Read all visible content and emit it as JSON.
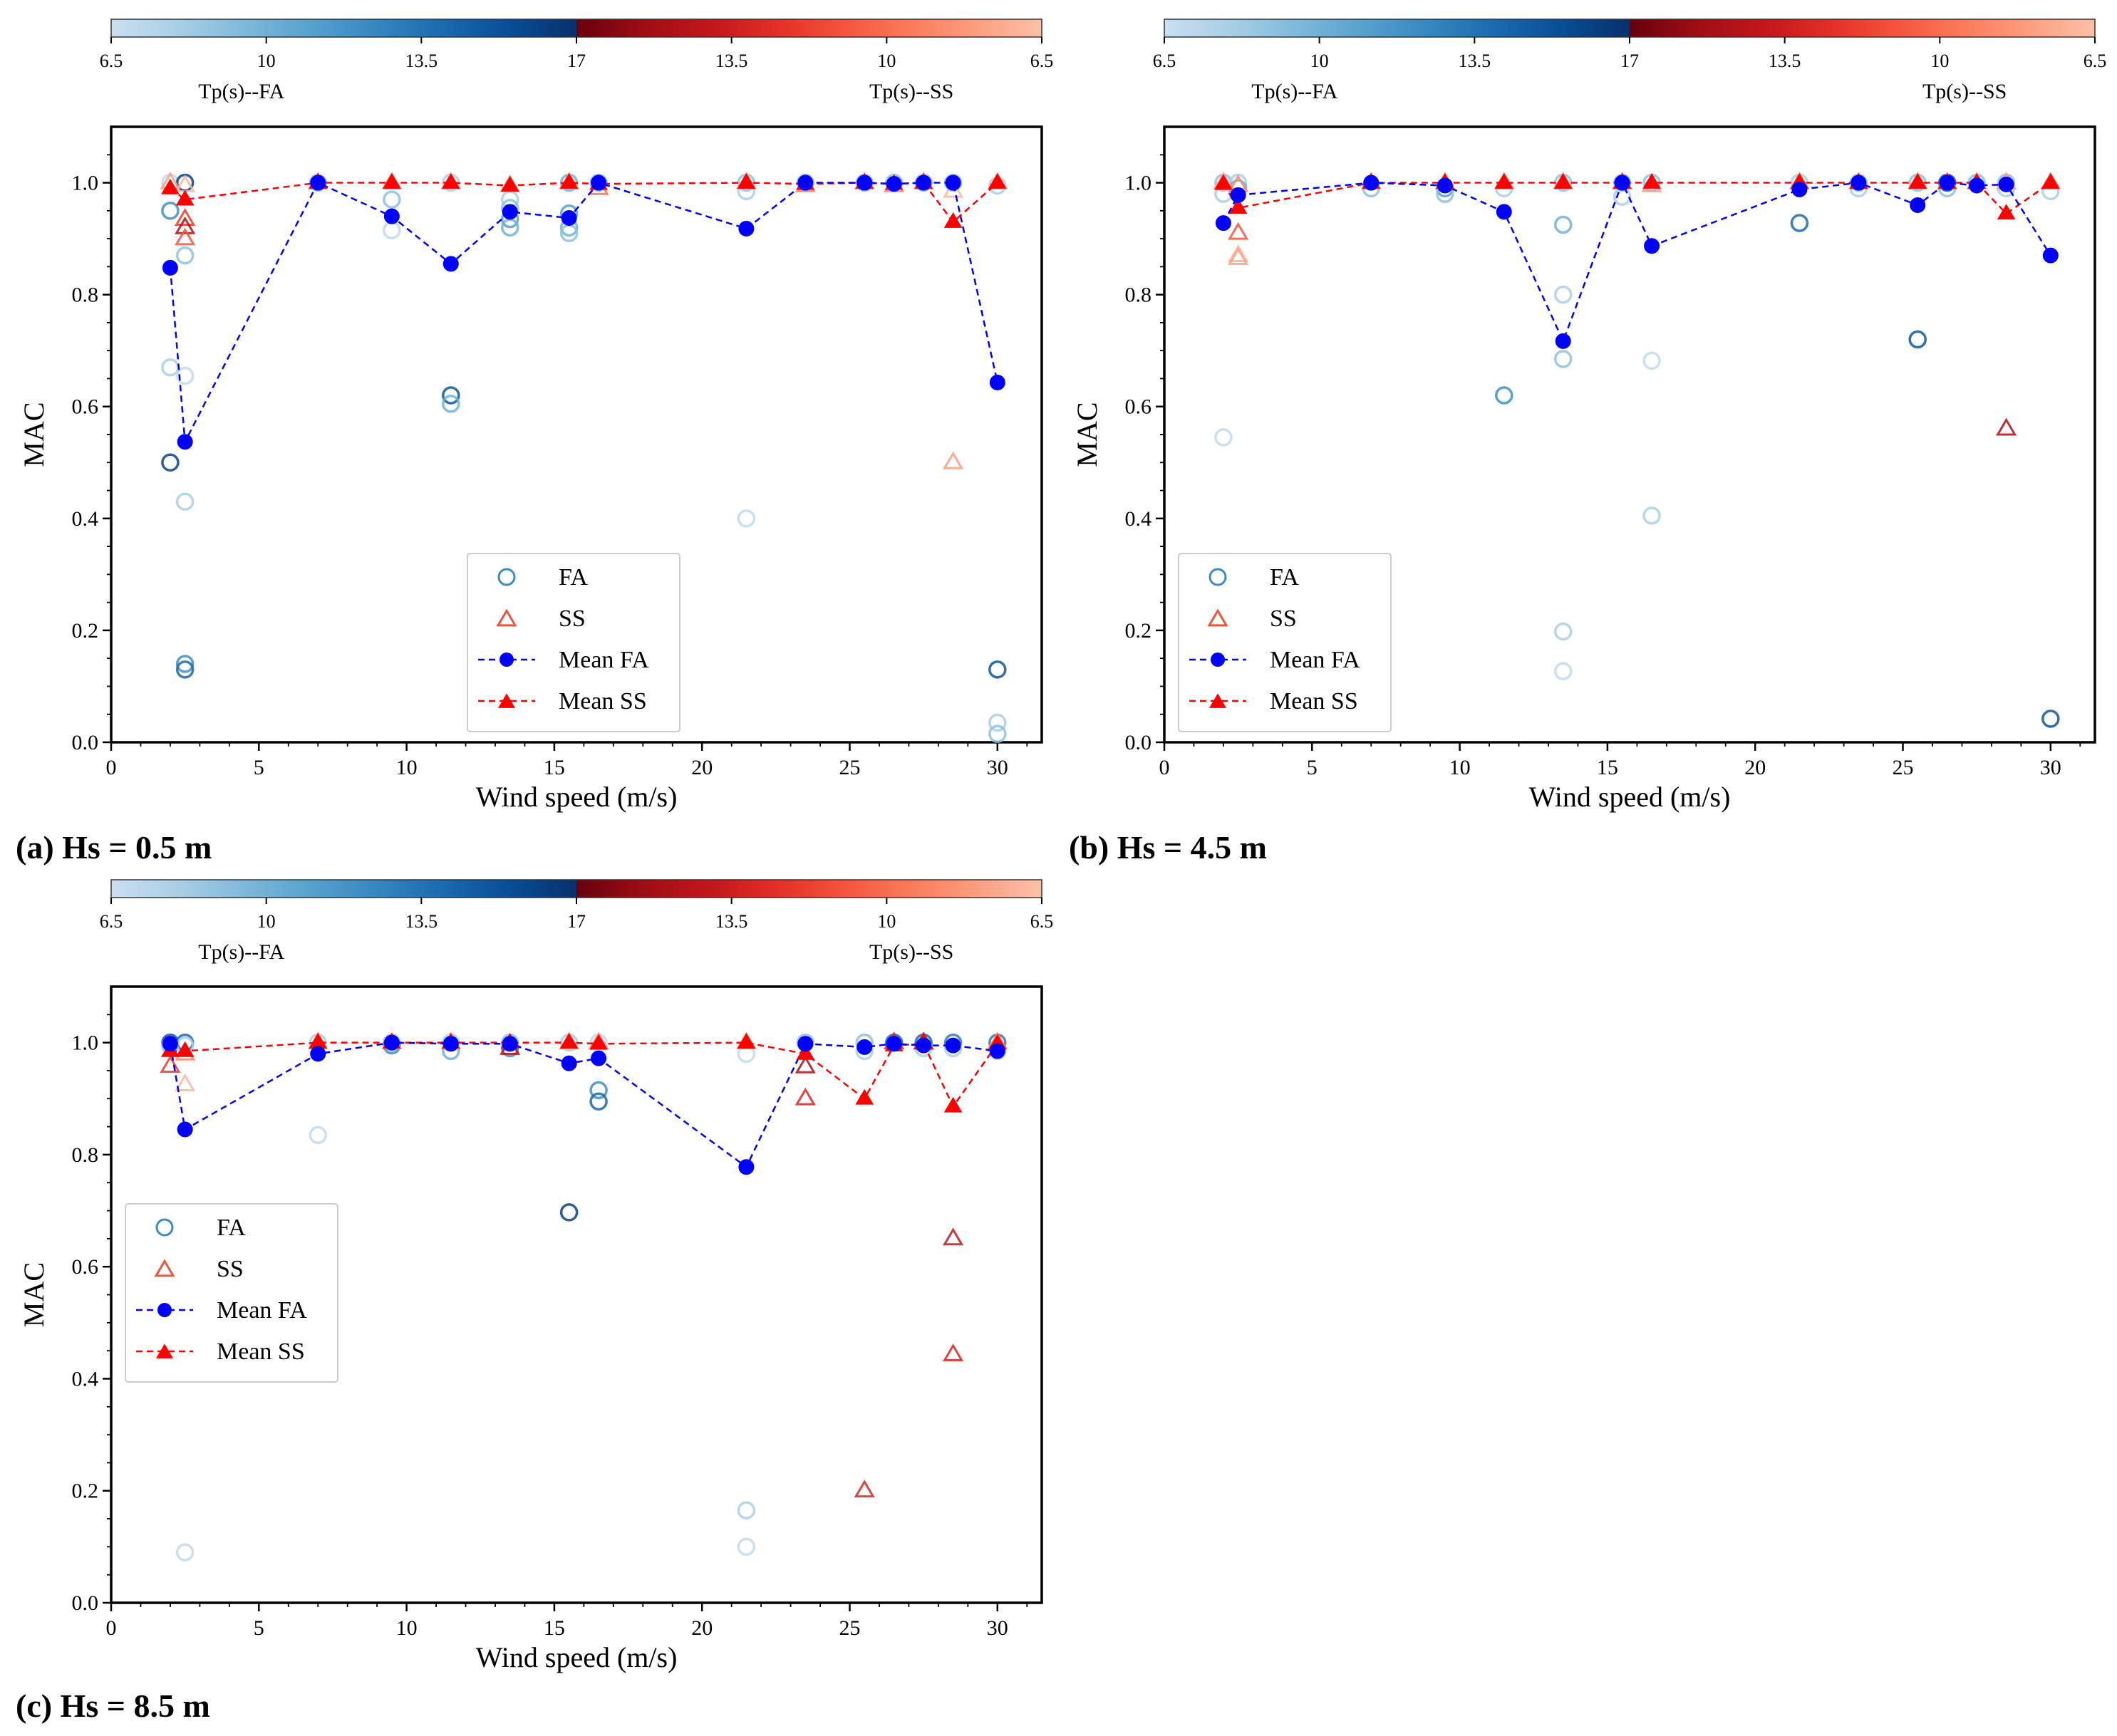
{
  "chart_data": [
    {
      "type": "scatter",
      "panel_label": "(a) Hs = 0.5 m",
      "xlabel": "Wind speed (m/s)",
      "ylabel": "MAC",
      "xlim": [
        0,
        31.5
      ],
      "ylim": [
        0,
        1.1
      ],
      "xticks": [
        0,
        5,
        10,
        15,
        20,
        25,
        30
      ],
      "yticks": [
        0.0,
        0.2,
        0.4,
        0.6,
        0.8,
        1.0
      ],
      "ytick_labels": [
        "0.0",
        "0.2",
        "0.4",
        "0.6",
        "0.8",
        "1.0"
      ],
      "legend": [
        "FA",
        "SS",
        "Mean FA",
        "Mean SS"
      ],
      "legend_position": "lower-center",
      "colorbar": {
        "tick_labels": [
          "6.5",
          "10",
          "13.5",
          "17",
          "13.5",
          "10",
          "6.5"
        ],
        "label_fa": "Tp(s)--FA",
        "label_ss": "Tp(s)--SS"
      },
      "fa_points": [
        {
          "x": 2,
          "y": 1.0,
          "tp": 7
        },
        {
          "x": 2,
          "y": 0.95,
          "tp": 12
        },
        {
          "x": 2,
          "y": 0.67,
          "tp": 8
        },
        {
          "x": 2,
          "y": 0.5,
          "tp": 16
        },
        {
          "x": 2.5,
          "y": 1.0,
          "tp": 16
        },
        {
          "x": 2.5,
          "y": 0.87,
          "tp": 9
        },
        {
          "x": 2.5,
          "y": 0.655,
          "tp": 7
        },
        {
          "x": 2.5,
          "y": 0.43,
          "tp": 8
        },
        {
          "x": 2.5,
          "y": 0.14,
          "tp": 12
        },
        {
          "x": 2.5,
          "y": 0.13,
          "tp": 14
        },
        {
          "x": 7,
          "y": 1.0,
          "tp": 9
        },
        {
          "x": 9.5,
          "y": 0.97,
          "tp": 9
        },
        {
          "x": 9.5,
          "y": 0.915,
          "tp": 7
        },
        {
          "x": 11.5,
          "y": 1.0,
          "tp": 8
        },
        {
          "x": 11.5,
          "y": 0.62,
          "tp": 15
        },
        {
          "x": 11.5,
          "y": 0.605,
          "tp": 10
        },
        {
          "x": 13.5,
          "y": 0.97,
          "tp": 8
        },
        {
          "x": 13.5,
          "y": 0.955,
          "tp": 9
        },
        {
          "x": 13.5,
          "y": 0.935,
          "tp": 11
        },
        {
          "x": 13.5,
          "y": 0.92,
          "tp": 10
        },
        {
          "x": 15.5,
          "y": 1.0,
          "tp": 10
        },
        {
          "x": 15.5,
          "y": 0.945,
          "tp": 11
        },
        {
          "x": 15.5,
          "y": 0.92,
          "tp": 10
        },
        {
          "x": 15.5,
          "y": 0.91,
          "tp": 9
        },
        {
          "x": 16.5,
          "y": 1.0,
          "tp": 9
        },
        {
          "x": 21.5,
          "y": 1.0,
          "tp": 9
        },
        {
          "x": 21.5,
          "y": 0.985,
          "tp": 8
        },
        {
          "x": 21.5,
          "y": 0.4,
          "tp": 7
        },
        {
          "x": 23.5,
          "y": 1.0,
          "tp": 9
        },
        {
          "x": 25.5,
          "y": 1.0,
          "tp": 9
        },
        {
          "x": 26.5,
          "y": 1.0,
          "tp": 9
        },
        {
          "x": 27.5,
          "y": 1.0,
          "tp": 9
        },
        {
          "x": 28.5,
          "y": 1.0,
          "tp": 9
        },
        {
          "x": 30,
          "y": 0.995,
          "tp": 8
        },
        {
          "x": 30,
          "y": 0.13,
          "tp": 15
        },
        {
          "x": 30,
          "y": 0.035,
          "tp": 8
        },
        {
          "x": 30,
          "y": 0.015,
          "tp": 9
        }
      ],
      "ss_points": [
        {
          "x": 2,
          "y": 1.0,
          "tp": 8
        },
        {
          "x": 2.5,
          "y": 0.995,
          "tp": 7
        },
        {
          "x": 2.5,
          "y": 0.935,
          "tp": 12
        },
        {
          "x": 2.5,
          "y": 0.92,
          "tp": 15
        },
        {
          "x": 2.5,
          "y": 0.9,
          "tp": 11
        },
        {
          "x": 7,
          "y": 1.0,
          "tp": 8
        },
        {
          "x": 9.5,
          "y": 1.0,
          "tp": 8
        },
        {
          "x": 11.5,
          "y": 1.0,
          "tp": 7
        },
        {
          "x": 13.5,
          "y": 0.995,
          "tp": 8
        },
        {
          "x": 15.5,
          "y": 1.0,
          "tp": 8
        },
        {
          "x": 16.5,
          "y": 0.99,
          "tp": 10
        },
        {
          "x": 21.5,
          "y": 1.0,
          "tp": 8
        },
        {
          "x": 23.5,
          "y": 0.995,
          "tp": 9
        },
        {
          "x": 25.5,
          "y": 1.0,
          "tp": 8
        },
        {
          "x": 26.5,
          "y": 0.995,
          "tp": 9
        },
        {
          "x": 27.5,
          "y": 1.0,
          "tp": 8
        },
        {
          "x": 28.5,
          "y": 0.985,
          "tp": 7
        },
        {
          "x": 28.5,
          "y": 0.5,
          "tp": 8
        },
        {
          "x": 30,
          "y": 1.0,
          "tp": 7
        }
      ],
      "mean_fa": {
        "x": [
          2,
          2.5,
          7,
          9.5,
          11.5,
          13.5,
          15.5,
          16.5,
          21.5,
          23.5,
          25.5,
          26.5,
          27.5,
          28.5,
          30
        ],
        "y": [
          0.848,
          0.537,
          1.0,
          0.94,
          0.855,
          0.948,
          0.937,
          1.0,
          0.918,
          1.0,
          1.0,
          0.998,
          1.0,
          1.0,
          0.643
        ]
      },
      "mean_ss": {
        "x": [
          2,
          2.5,
          7,
          9.5,
          11.5,
          13.5,
          15.5,
          16.5,
          21.5,
          23.5,
          25.5,
          26.5,
          27.5,
          28.5,
          30
        ],
        "y": [
          0.99,
          0.97,
          1.0,
          1.0,
          1.0,
          0.995,
          1.0,
          0.998,
          1.0,
          0.998,
          1.0,
          0.998,
          1.0,
          0.93,
          1.0
        ]
      }
    },
    {
      "type": "scatter",
      "panel_label": "(b) Hs = 4.5 m",
      "xlabel": "Wind speed (m/s)",
      "ylabel": "MAC",
      "xlim": [
        0,
        31.5
      ],
      "ylim": [
        0,
        1.1
      ],
      "xticks": [
        0,
        5,
        10,
        15,
        20,
        25,
        30
      ],
      "yticks": [
        0.0,
        0.2,
        0.4,
        0.6,
        0.8,
        1.0
      ],
      "ytick_labels": [
        "0.0",
        "0.2",
        "0.4",
        "0.6",
        "0.8",
        "1.0"
      ],
      "legend": [
        "FA",
        "SS",
        "Mean FA",
        "Mean SS"
      ],
      "legend_position": "lower-left",
      "colorbar": {
        "tick_labels": [
          "6.5",
          "10",
          "13.5",
          "17",
          "13.5",
          "10",
          "6.5"
        ],
        "label_fa": "Tp(s)--FA",
        "label_ss": "Tp(s)--SS"
      },
      "fa_points": [
        {
          "x": 2,
          "y": 1.0,
          "tp": 9
        },
        {
          "x": 2,
          "y": 0.98,
          "tp": 8
        },
        {
          "x": 2,
          "y": 0.545,
          "tp": 7
        },
        {
          "x": 2.5,
          "y": 1.0,
          "tp": 8
        },
        {
          "x": 2.5,
          "y": 0.99,
          "tp": 10
        },
        {
          "x": 7,
          "y": 0.99,
          "tp": 9
        },
        {
          "x": 9.5,
          "y": 0.99,
          "tp": 11
        },
        {
          "x": 9.5,
          "y": 0.98,
          "tp": 9
        },
        {
          "x": 11.5,
          "y": 0.99,
          "tp": 8
        },
        {
          "x": 11.5,
          "y": 0.62,
          "tp": 12
        },
        {
          "x": 13.5,
          "y": 1.0,
          "tp": 9
        },
        {
          "x": 13.5,
          "y": 0.925,
          "tp": 10
        },
        {
          "x": 13.5,
          "y": 0.8,
          "tp": 8
        },
        {
          "x": 13.5,
          "y": 0.685,
          "tp": 9
        },
        {
          "x": 13.5,
          "y": 0.198,
          "tp": 8
        },
        {
          "x": 13.5,
          "y": 0.127,
          "tp": 7
        },
        {
          "x": 15.5,
          "y": 1.0,
          "tp": 9
        },
        {
          "x": 15.5,
          "y": 0.975,
          "tp": 8
        },
        {
          "x": 16.5,
          "y": 1.0,
          "tp": 9
        },
        {
          "x": 16.5,
          "y": 0.682,
          "tp": 7
        },
        {
          "x": 16.5,
          "y": 0.405,
          "tp": 8
        },
        {
          "x": 21.5,
          "y": 1.0,
          "tp": 8
        },
        {
          "x": 21.5,
          "y": 0.928,
          "tp": 14
        },
        {
          "x": 23.5,
          "y": 1.0,
          "tp": 9
        },
        {
          "x": 23.5,
          "y": 0.99,
          "tp": 8
        },
        {
          "x": 25.5,
          "y": 1.0,
          "tp": 9
        },
        {
          "x": 25.5,
          "y": 0.72,
          "tp": 15
        },
        {
          "x": 26.5,
          "y": 1.0,
          "tp": 15
        },
        {
          "x": 26.5,
          "y": 0.99,
          "tp": 9
        },
        {
          "x": 27.5,
          "y": 1.0,
          "tp": 9
        },
        {
          "x": 28.5,
          "y": 1.0,
          "tp": 9
        },
        {
          "x": 28.5,
          "y": 0.99,
          "tp": 8
        },
        {
          "x": 30,
          "y": 0.985,
          "tp": 8
        },
        {
          "x": 30,
          "y": 0.042,
          "tp": 15
        }
      ],
      "ss_points": [
        {
          "x": 2,
          "y": 1.0,
          "tp": 8
        },
        {
          "x": 2.5,
          "y": 0.995,
          "tp": 9
        },
        {
          "x": 2.5,
          "y": 0.91,
          "tp": 11
        },
        {
          "x": 2.5,
          "y": 0.87,
          "tp": 7
        },
        {
          "x": 2.5,
          "y": 0.865,
          "tp": 8
        },
        {
          "x": 7,
          "y": 1.0,
          "tp": 8
        },
        {
          "x": 9.5,
          "y": 1.0,
          "tp": 8
        },
        {
          "x": 11.5,
          "y": 1.0,
          "tp": 8
        },
        {
          "x": 13.5,
          "y": 1.0,
          "tp": 8
        },
        {
          "x": 15.5,
          "y": 1.0,
          "tp": 9
        },
        {
          "x": 16.5,
          "y": 0.995,
          "tp": 8
        },
        {
          "x": 21.5,
          "y": 1.0,
          "tp": 8
        },
        {
          "x": 23.5,
          "y": 1.0,
          "tp": 8
        },
        {
          "x": 25.5,
          "y": 1.0,
          "tp": 8
        },
        {
          "x": 26.5,
          "y": 1.0,
          "tp": 9
        },
        {
          "x": 27.5,
          "y": 1.0,
          "tp": 8
        },
        {
          "x": 28.5,
          "y": 1.0,
          "tp": 8
        },
        {
          "x": 28.5,
          "y": 0.56,
          "tp": 15
        },
        {
          "x": 30,
          "y": 1.0,
          "tp": 8
        }
      ],
      "mean_fa": {
        "x": [
          2,
          2.5,
          7,
          9.5,
          11.5,
          13.5,
          15.5,
          16.5,
          21.5,
          23.5,
          25.5,
          26.5,
          27.5,
          28.5,
          30
        ],
        "y": [
          0.928,
          0.978,
          1.0,
          0.995,
          0.948,
          0.717,
          1.0,
          0.887,
          0.988,
          1.0,
          0.96,
          1.0,
          0.995,
          0.997,
          0.87
        ]
      },
      "mean_ss": {
        "x": [
          2,
          2.5,
          7,
          9.5,
          11.5,
          13.5,
          15.5,
          16.5,
          21.5,
          23.5,
          25.5,
          26.5,
          27.5,
          28.5,
          30
        ],
        "y": [
          0.998,
          0.955,
          1.0,
          1.0,
          1.0,
          1.0,
          1.0,
          1.0,
          1.0,
          1.0,
          1.0,
          1.0,
          1.0,
          0.945,
          1.0
        ]
      }
    },
    {
      "type": "scatter",
      "panel_label": "(c) Hs = 8.5 m",
      "xlabel": "Wind speed (m/s)",
      "ylabel": "MAC",
      "xlim": [
        0,
        31.5
      ],
      "ylim": [
        0,
        1.1
      ],
      "xticks": [
        0,
        5,
        10,
        15,
        20,
        25,
        30
      ],
      "yticks": [
        0.0,
        0.2,
        0.4,
        0.6,
        0.8,
        1.0
      ],
      "ytick_labels": [
        "0.0",
        "0.2",
        "0.4",
        "0.6",
        "0.8",
        "1.0"
      ],
      "legend": [
        "FA",
        "SS",
        "Mean FA",
        "Mean SS"
      ],
      "legend_position": "center-left",
      "colorbar": {
        "tick_labels": [
          "6.5",
          "10",
          "13.5",
          "17",
          "13.5",
          "10",
          "6.5"
        ],
        "label_fa": "Tp(s)--FA",
        "label_ss": "Tp(s)--SS"
      },
      "fa_points": [
        {
          "x": 2,
          "y": 1.0,
          "tp": 15
        },
        {
          "x": 2,
          "y": 0.995,
          "tp": 9
        },
        {
          "x": 2.5,
          "y": 1.0,
          "tp": 14
        },
        {
          "x": 2.5,
          "y": 0.995,
          "tp": 8
        },
        {
          "x": 2.5,
          "y": 0.09,
          "tp": 7
        },
        {
          "x": 7,
          "y": 1.0,
          "tp": 8
        },
        {
          "x": 7,
          "y": 0.835,
          "tp": 7
        },
        {
          "x": 9.5,
          "y": 1.0,
          "tp": 9
        },
        {
          "x": 9.5,
          "y": 0.995,
          "tp": 12
        },
        {
          "x": 11.5,
          "y": 1.0,
          "tp": 8
        },
        {
          "x": 11.5,
          "y": 0.985,
          "tp": 10
        },
        {
          "x": 13.5,
          "y": 1.0,
          "tp": 9
        },
        {
          "x": 13.5,
          "y": 0.99,
          "tp": 12
        },
        {
          "x": 15.5,
          "y": 1.0,
          "tp": 8
        },
        {
          "x": 15.5,
          "y": 0.697,
          "tp": 16
        },
        {
          "x": 16.5,
          "y": 1.0,
          "tp": 7
        },
        {
          "x": 16.5,
          "y": 0.915,
          "tp": 12
        },
        {
          "x": 16.5,
          "y": 0.895,
          "tp": 14
        },
        {
          "x": 21.5,
          "y": 0.98,
          "tp": 7
        },
        {
          "x": 21.5,
          "y": 0.165,
          "tp": 8
        },
        {
          "x": 21.5,
          "y": 0.1,
          "tp": 7
        },
        {
          "x": 23.5,
          "y": 1.0,
          "tp": 9
        },
        {
          "x": 25.5,
          "y": 1.0,
          "tp": 9
        },
        {
          "x": 25.5,
          "y": 0.985,
          "tp": 8
        },
        {
          "x": 26.5,
          "y": 1.0,
          "tp": 14
        },
        {
          "x": 27.5,
          "y": 1.0,
          "tp": 14
        },
        {
          "x": 27.5,
          "y": 0.99,
          "tp": 8
        },
        {
          "x": 28.5,
          "y": 1.0,
          "tp": 13
        },
        {
          "x": 28.5,
          "y": 0.99,
          "tp": 8
        },
        {
          "x": 30,
          "y": 1.0,
          "tp": 13
        },
        {
          "x": 30,
          "y": 0.985,
          "tp": 8
        }
      ],
      "ss_points": [
        {
          "x": 2,
          "y": 0.958,
          "tp": 12
        },
        {
          "x": 2.5,
          "y": 0.925,
          "tp": 7
        },
        {
          "x": 2.5,
          "y": 0.98,
          "tp": 9
        },
        {
          "x": 7,
          "y": 1.0,
          "tp": 8
        },
        {
          "x": 9.5,
          "y": 1.0,
          "tp": 8
        },
        {
          "x": 11.5,
          "y": 1.0,
          "tp": 8
        },
        {
          "x": 13.5,
          "y": 0.99,
          "tp": 15
        },
        {
          "x": 15.5,
          "y": 1.0,
          "tp": 8
        },
        {
          "x": 16.5,
          "y": 1.0,
          "tp": 8
        },
        {
          "x": 21.5,
          "y": 1.0,
          "tp": 8
        },
        {
          "x": 23.5,
          "y": 0.957,
          "tp": 15
        },
        {
          "x": 23.5,
          "y": 0.9,
          "tp": 13
        },
        {
          "x": 25.5,
          "y": 0.2,
          "tp": 13
        },
        {
          "x": 26.5,
          "y": 1.0,
          "tp": 13
        },
        {
          "x": 27.5,
          "y": 1.0,
          "tp": 14
        },
        {
          "x": 28.5,
          "y": 0.65,
          "tp": 14
        },
        {
          "x": 28.5,
          "y": 0.443,
          "tp": 13
        },
        {
          "x": 30,
          "y": 1.0,
          "tp": 9
        }
      ],
      "mean_fa": {
        "x": [
          2,
          2.5,
          7,
          9.5,
          11.5,
          13.5,
          15.5,
          16.5,
          21.5,
          23.5,
          25.5,
          26.5,
          27.5,
          28.5,
          30
        ],
        "y": [
          0.998,
          0.845,
          0.98,
          1.0,
          0.998,
          0.998,
          0.963,
          0.972,
          0.778,
          0.998,
          0.992,
          0.998,
          0.995,
          0.995,
          0.985
        ]
      },
      "mean_ss": {
        "x": [
          2,
          2.5,
          7,
          9.5,
          11.5,
          13.5,
          15.5,
          16.5,
          21.5,
          23.5,
          25.5,
          26.5,
          27.5,
          28.5,
          30
        ],
        "y": [
          0.985,
          0.985,
          1.0,
          1.0,
          1.0,
          1.0,
          1.0,
          0.998,
          1.0,
          0.98,
          0.9,
          0.995,
          0.998,
          0.886,
          0.998
        ]
      }
    }
  ]
}
